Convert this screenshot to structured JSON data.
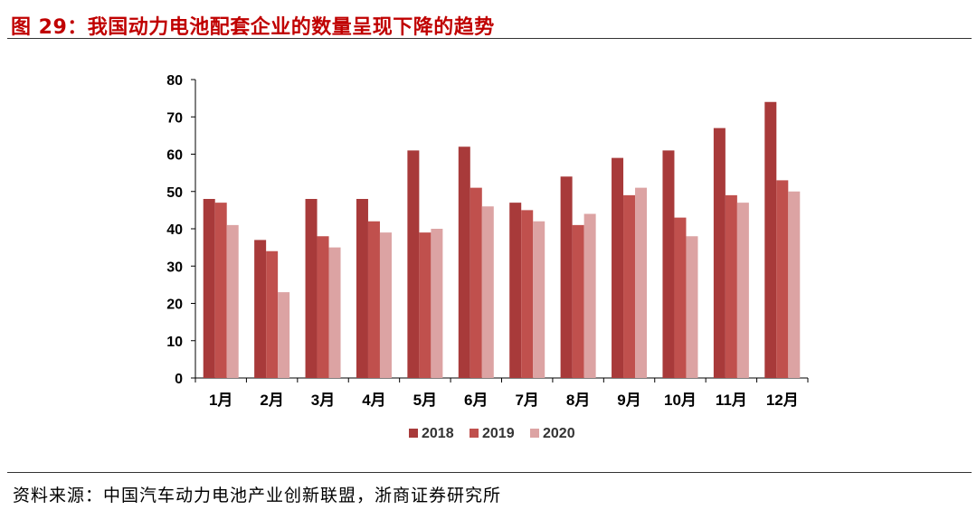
{
  "header": {
    "title": "图 29：我国动力电池配套企业的数量呈现下降的趋势"
  },
  "footer": {
    "source": "资料来源：中国汽车动力电池产业创新联盟，浙商证券研究所"
  },
  "chart_data": {
    "type": "bar",
    "title": "",
    "xlabel": "",
    "ylabel": "",
    "ylim": [
      0,
      80
    ],
    "yticks": [
      0,
      10,
      20,
      30,
      40,
      50,
      60,
      70,
      80
    ],
    "grid": false,
    "legend": "bottom",
    "categories": [
      "1月",
      "2月",
      "3月",
      "4月",
      "5月",
      "6月",
      "7月",
      "8月",
      "9月",
      "10月",
      "11月",
      "12月"
    ],
    "series": [
      {
        "name": "2018",
        "color": "#a83a3a",
        "values": [
          48,
          37,
          48,
          48,
          61,
          62,
          47,
          54,
          59,
          61,
          67,
          74
        ]
      },
      {
        "name": "2019",
        "color": "#c0504d",
        "values": [
          47,
          34,
          38,
          42,
          39,
          51,
          45,
          41,
          49,
          43,
          49,
          53
        ]
      },
      {
        "name": "2020",
        "color": "#dca3a3",
        "values": [
          41,
          23,
          35,
          39,
          40,
          46,
          42,
          44,
          51,
          38,
          47,
          50
        ]
      }
    ]
  }
}
